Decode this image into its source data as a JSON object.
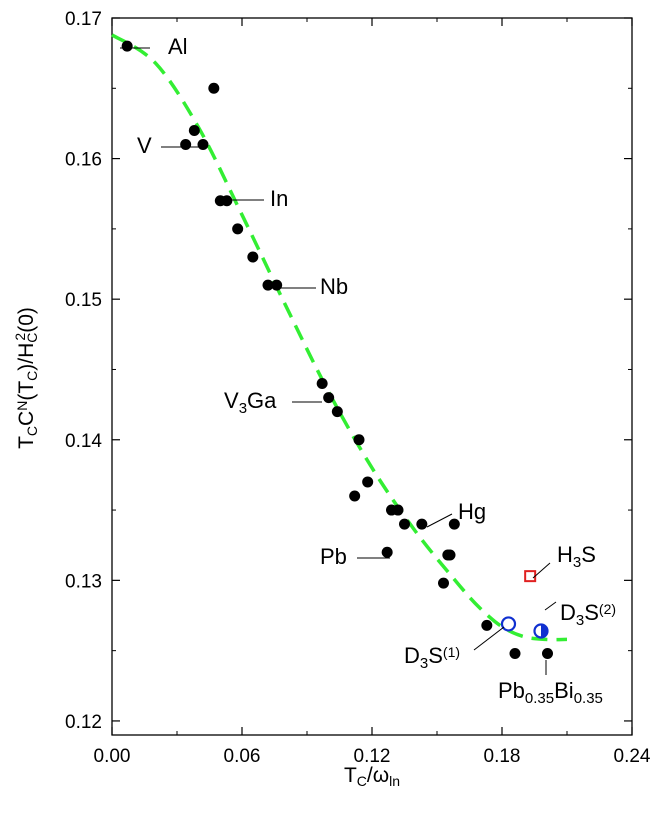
{
  "chart_data": {
    "type": "scatter",
    "title": "",
    "xlabel": {
      "base": "T",
      "sub": "C",
      "mid": "/ω",
      "sub2": "ln"
    },
    "ylabel": "T_C C^N(T_C)/H_C^2(0)",
    "xlim": [
      0.0,
      0.24
    ],
    "ylim": [
      0.119,
      0.17
    ],
    "xticks": [
      0.0,
      0.06,
      0.12,
      0.18,
      0.24
    ],
    "xtick_labels": [
      "0.00",
      "0.06",
      "0.12",
      "0.18",
      "0.24"
    ],
    "yticks": [
      0.12,
      0.13,
      0.14,
      0.15,
      0.16,
      0.17
    ],
    "ytick_labels": [
      "0.12",
      "0.13",
      "0.14",
      "0.15",
      "0.16",
      "0.17"
    ],
    "grid": false,
    "series": [
      {
        "kind": "points",
        "color": "#000000",
        "x": [
          0.007,
          0.047,
          0.034,
          0.038,
          0.042,
          0.05,
          0.053,
          0.058,
          0.065,
          0.072,
          0.076,
          0.097,
          0.1,
          0.104,
          0.114,
          0.112,
          0.118,
          0.129,
          0.127,
          0.132,
          0.135,
          0.143,
          0.158,
          0.155,
          0.156,
          0.153,
          0.173,
          0.186,
          0.201
        ],
        "y": [
          0.168,
          0.165,
          0.161,
          0.162,
          0.161,
          0.157,
          0.157,
          0.155,
          0.153,
          0.151,
          0.151,
          0.144,
          0.143,
          0.142,
          0.14,
          0.136,
          0.137,
          0.135,
          0.132,
          0.135,
          0.134,
          0.134,
          0.134,
          0.1318,
          0.1318,
          0.1298,
          0.1268,
          0.1248,
          0.1248
        ]
      },
      {
        "kind": "fit",
        "color": "#33ee33",
        "x": [
          0.0,
          0.02,
          0.04,
          0.06,
          0.08,
          0.1,
          0.12,
          0.14,
          0.16,
          0.17,
          0.18,
          0.19,
          0.2,
          0.21
        ],
        "y": [
          0.1688,
          0.1668,
          0.1622,
          0.156,
          0.1496,
          0.1434,
          0.138,
          0.1335,
          0.1297,
          0.128,
          0.1267,
          0.126,
          0.1258,
          0.1258
        ]
      }
    ],
    "special": [
      {
        "name": "H3S",
        "marker": "open-square",
        "color": "#e02020",
        "x": 0.193,
        "y": 0.1303
      },
      {
        "name": "D3S(1)",
        "marker": "open-circle",
        "color": "#1030d0",
        "x": 0.183,
        "y": 0.1269
      },
      {
        "name": "D3S(2)",
        "marker": "half-circle",
        "color": "#1030d0",
        "x": 0.198,
        "y": 0.1264
      }
    ],
    "labels": [
      {
        "parts": [
          [
            "Al",
            ""
          ]
        ]
      },
      {
        "parts": [
          [
            "V",
            ""
          ]
        ]
      },
      {
        "parts": [
          [
            "In",
            ""
          ]
        ]
      },
      {
        "parts": [
          [
            "Nb",
            ""
          ]
        ]
      },
      {
        "parts": [
          [
            "V",
            ""
          ],
          [
            "3",
            "sub"
          ],
          [
            "Ga",
            ""
          ]
        ]
      },
      {
        "parts": [
          [
            "Hg",
            ""
          ]
        ]
      },
      {
        "parts": [
          [
            "Pb",
            ""
          ]
        ]
      },
      {
        "parts": [
          [
            "H",
            ""
          ],
          [
            "3",
            "sub"
          ],
          [
            "S",
            ""
          ]
        ]
      },
      {
        "parts": [
          [
            "D",
            ""
          ],
          [
            "3",
            "sub"
          ],
          [
            "S",
            ""
          ],
          [
            "(2)",
            "sup"
          ]
        ]
      },
      {
        "parts": [
          [
            "D",
            ""
          ],
          [
            "3",
            "sub"
          ],
          [
            "S",
            ""
          ],
          [
            "(1)",
            "sup"
          ]
        ]
      },
      {
        "parts": [
          [
            "Pb",
            ""
          ],
          [
            "0.35",
            "sub"
          ],
          [
            "Bi",
            ""
          ],
          [
            "0.35",
            "sub"
          ]
        ]
      }
    ]
  }
}
